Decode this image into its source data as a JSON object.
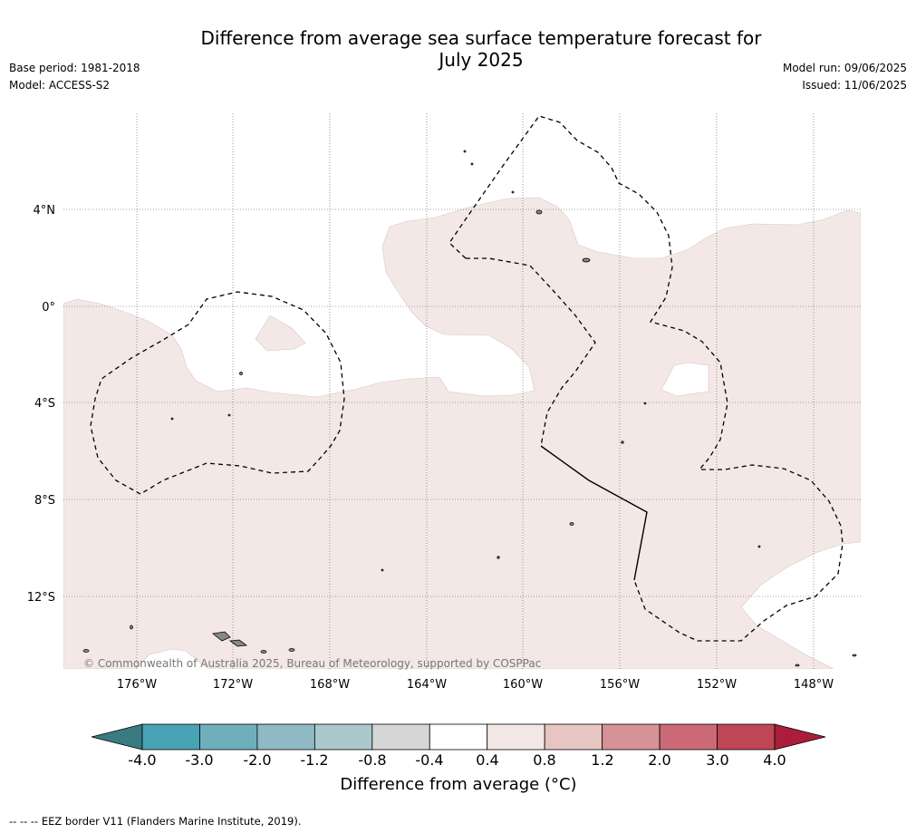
{
  "title": {
    "line1": "Difference from average sea surface temperature forecast for",
    "line2": "July 2025"
  },
  "meta": {
    "base_period": "Base period: 1981-2018",
    "model": "Model: ACCESS-S2",
    "model_run": "Model run: 09/06/2025",
    "issued": "Issued: 11/06/2025"
  },
  "map": {
    "copyright": "© Commonwealth of Australia 2025, Bureau of Meteorology, supported by COSPPac",
    "lat_labels": [
      "4°N",
      "0°",
      "4°S",
      "8°S",
      "12°S"
    ],
    "lon_labels": [
      "176°W",
      "172°W",
      "168°W",
      "164°W",
      "160°W",
      "156°W",
      "152°W",
      "148°W"
    ],
    "anomaly_fill_color": "#f4e8e7",
    "ocean_color": "#ffffff",
    "eez_line_color": "#000000"
  },
  "colorbar": {
    "label": "Difference from average (°C)",
    "ticks": [
      "-4.0",
      "-3.0",
      "-2.0",
      "-1.2",
      "-0.8",
      "-0.4",
      "0.4",
      "0.8",
      "1.2",
      "2.0",
      "3.0",
      "4.0"
    ],
    "low_extend_color": "#3a7a83",
    "high_extend_color": "#aa1e3c",
    "colors": [
      "#48a3b4",
      "#6fafbc",
      "#8fb9c4",
      "#abc8cd",
      "#d5d7d7",
      "#ffffff",
      "#f4e8e7",
      "#e7c5c2",
      "#d69296",
      "#cb6a76",
      "#c04656"
    ]
  },
  "footnote": "-- -- -- EEZ border V11 (Flanders Marine Institute, 2019)."
}
